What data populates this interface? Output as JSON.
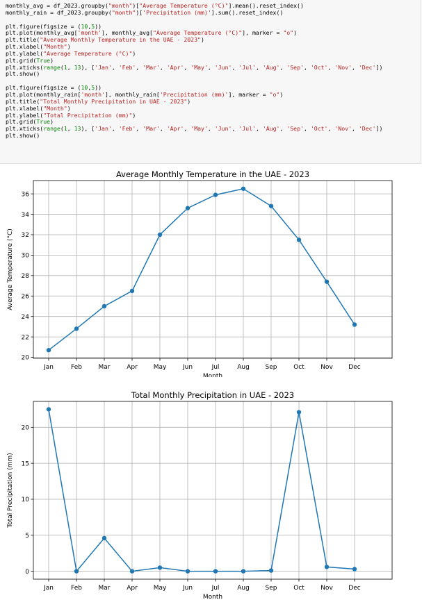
{
  "code_lines": [
    [
      {
        "t": "monthly_avg = df_2023.groupby("
      },
      {
        "t": "\"month\"",
        "c": "str"
      },
      {
        "t": ")["
      },
      {
        "t": "\"Average Temperature (°C)\"",
        "c": "str"
      },
      {
        "t": "].mean().reset_index()"
      }
    ],
    [
      {
        "t": "monthly_rain = df_2023.groupby("
      },
      {
        "t": "\"month\"",
        "c": "str"
      },
      {
        "t": ")["
      },
      {
        "t": "'Precipitation (mm)'",
        "c": "str"
      },
      {
        "t": "].sum().reset_index()"
      }
    ],
    [],
    [
      {
        "t": "plt.figure(figsize = ("
      },
      {
        "t": "10",
        "c": "num"
      },
      {
        "t": ","
      },
      {
        "t": "5",
        "c": "num"
      },
      {
        "t": "))"
      }
    ],
    [
      {
        "t": "plt.plot(monthly_avg["
      },
      {
        "t": "'month'",
        "c": "str"
      },
      {
        "t": "], monthly_avg["
      },
      {
        "t": "\"Average Temperature (°C)\"",
        "c": "str"
      },
      {
        "t": "], marker = "
      },
      {
        "t": "\"o\"",
        "c": "str"
      },
      {
        "t": ")"
      }
    ],
    [
      {
        "t": "plt.title("
      },
      {
        "t": "\"Average Monthly Temperature in the UAE - 2023\"",
        "c": "str"
      },
      {
        "t": ")"
      }
    ],
    [
      {
        "t": "plt.xlabel("
      },
      {
        "t": "\"Month\"",
        "c": "str"
      },
      {
        "t": ")"
      }
    ],
    [
      {
        "t": "plt.ylabel("
      },
      {
        "t": "\"Average Temperature (°C)\"",
        "c": "str"
      },
      {
        "t": ")"
      }
    ],
    [
      {
        "t": "plt.grid("
      },
      {
        "t": "True",
        "c": "kw"
      },
      {
        "t": ")"
      }
    ],
    [
      {
        "t": "plt.xticks("
      },
      {
        "t": "range",
        "c": "kw"
      },
      {
        "t": "("
      },
      {
        "t": "1",
        "c": "num"
      },
      {
        "t": ", "
      },
      {
        "t": "13",
        "c": "num"
      },
      {
        "t": "), ["
      },
      {
        "t": "'Jan'",
        "c": "str"
      },
      {
        "t": ", "
      },
      {
        "t": "'Feb'",
        "c": "str"
      },
      {
        "t": ", "
      },
      {
        "t": "'Mar'",
        "c": "str"
      },
      {
        "t": ", "
      },
      {
        "t": "'Apr'",
        "c": "str"
      },
      {
        "t": ", "
      },
      {
        "t": "'May'",
        "c": "str"
      },
      {
        "t": ", "
      },
      {
        "t": "'Jun'",
        "c": "str"
      },
      {
        "t": ", "
      },
      {
        "t": "'Jul'",
        "c": "str"
      },
      {
        "t": ", "
      },
      {
        "t": "'Aug'",
        "c": "str"
      },
      {
        "t": ", "
      },
      {
        "t": "'Sep'",
        "c": "str"
      },
      {
        "t": ", "
      },
      {
        "t": "'Oct'",
        "c": "str"
      },
      {
        "t": ", "
      },
      {
        "t": "'Nov'",
        "c": "str"
      },
      {
        "t": ", "
      },
      {
        "t": "'Dec'",
        "c": "str"
      },
      {
        "t": "])"
      }
    ],
    [
      {
        "t": "plt.show()"
      }
    ],
    [],
    [
      {
        "t": "plt.figure(figsize = ("
      },
      {
        "t": "10",
        "c": "num"
      },
      {
        "t": ","
      },
      {
        "t": "5",
        "c": "num"
      },
      {
        "t": "))"
      }
    ],
    [
      {
        "t": "plt.plot(monthly_rain["
      },
      {
        "t": "'month'",
        "c": "str"
      },
      {
        "t": "], monthly_rain["
      },
      {
        "t": "'Precipitation (mm)'",
        "c": "str"
      },
      {
        "t": "], marker = "
      },
      {
        "t": "\"o\"",
        "c": "str"
      },
      {
        "t": ")"
      }
    ],
    [
      {
        "t": "plt.title("
      },
      {
        "t": "\"Total Monthly Precipitation in UAE - 2023\"",
        "c": "str"
      },
      {
        "t": ")"
      }
    ],
    [
      {
        "t": "plt.xlabel("
      },
      {
        "t": "\"Month\"",
        "c": "str"
      },
      {
        "t": ")"
      }
    ],
    [
      {
        "t": "plt.ylabel("
      },
      {
        "t": "\"Total Precipitation (mm)\"",
        "c": "str"
      },
      {
        "t": ")"
      }
    ],
    [
      {
        "t": "plt.grid("
      },
      {
        "t": "True",
        "c": "kw"
      },
      {
        "t": ")"
      }
    ],
    [
      {
        "t": "plt.xticks("
      },
      {
        "t": "range",
        "c": "kw"
      },
      {
        "t": "("
      },
      {
        "t": "1",
        "c": "num"
      },
      {
        "t": ", "
      },
      {
        "t": "13",
        "c": "num"
      },
      {
        "t": "), ["
      },
      {
        "t": "'Jan'",
        "c": "str"
      },
      {
        "t": ", "
      },
      {
        "t": "'Feb'",
        "c": "str"
      },
      {
        "t": ", "
      },
      {
        "t": "'Mar'",
        "c": "str"
      },
      {
        "t": ", "
      },
      {
        "t": "'Apr'",
        "c": "str"
      },
      {
        "t": ", "
      },
      {
        "t": "'May'",
        "c": "str"
      },
      {
        "t": ", "
      },
      {
        "t": "'Jun'",
        "c": "str"
      },
      {
        "t": ", "
      },
      {
        "t": "'Jul'",
        "c": "str"
      },
      {
        "t": ", "
      },
      {
        "t": "'Aug'",
        "c": "str"
      },
      {
        "t": ", "
      },
      {
        "t": "'Sep'",
        "c": "str"
      },
      {
        "t": ", "
      },
      {
        "t": "'Oct'",
        "c": "str"
      },
      {
        "t": ", "
      },
      {
        "t": "'Nov'",
        "c": "str"
      },
      {
        "t": ", "
      },
      {
        "t": "'Dec'",
        "c": "str"
      },
      {
        "t": "])"
      }
    ],
    [
      {
        "t": "plt.show()"
      }
    ]
  ],
  "colors": {
    "line": "#1f77b4",
    "grid": "#b0b0b0",
    "code_string": "#ba2121",
    "code_keyword": "#008000",
    "code_background": "#f7f7f7"
  },
  "chart_data": [
    {
      "type": "line",
      "title": "Average Monthly Temperature in the UAE - 2023",
      "xlabel": "Month",
      "ylabel": "Average Temperature (°C)",
      "categories": [
        "Jan",
        "Feb",
        "Mar",
        "Apr",
        "May",
        "Jun",
        "Jul",
        "Aug",
        "Sep",
        "Oct",
        "Nov",
        "Dec"
      ],
      "values": [
        20.7,
        22.8,
        25.0,
        26.5,
        32.0,
        34.6,
        35.9,
        36.5,
        34.8,
        31.5,
        27.4,
        23.2
      ],
      "ylim": [
        19.9,
        37.3
      ],
      "yticks": [
        20,
        22,
        24,
        26,
        28,
        30,
        32,
        34,
        36
      ],
      "grid": true,
      "marker": "o"
    },
    {
      "type": "line",
      "title": "Total Monthly Precipitation in UAE - 2023",
      "xlabel": "Month",
      "ylabel": "Total Precipitation (mm)",
      "categories": [
        "Jan",
        "Feb",
        "Mar",
        "Apr",
        "May",
        "Jun",
        "Jul",
        "Aug",
        "Sep",
        "Oct",
        "Nov",
        "Dec"
      ],
      "values": [
        22.5,
        0.0,
        4.6,
        0.0,
        0.5,
        0.0,
        0.0,
        0.0,
        0.1,
        22.1,
        0.6,
        0.3
      ],
      "ylim": [
        -1.1,
        23.6
      ],
      "yticks": [
        0,
        5,
        10,
        15,
        20
      ],
      "grid": true,
      "marker": "o"
    }
  ]
}
